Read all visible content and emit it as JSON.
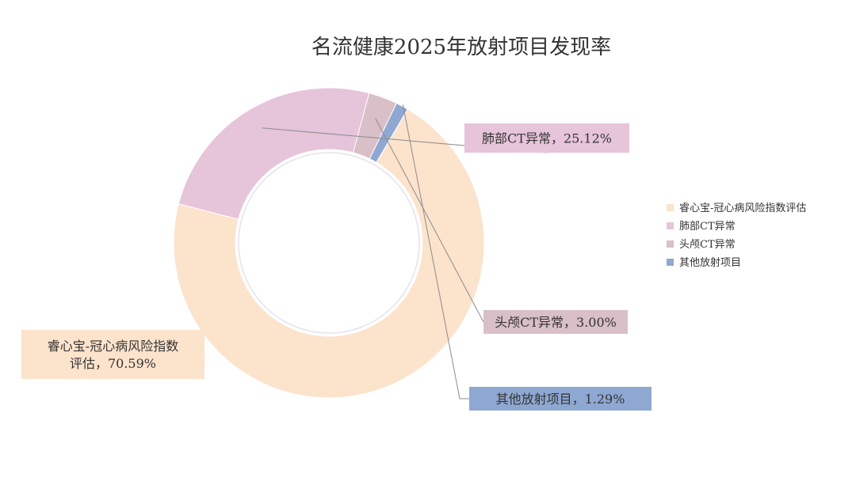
{
  "chart_data": {
    "type": "pie",
    "title": "名流健康2025年放射项目发现率",
    "donut": true,
    "categories": [
      "睿心宝-冠心病风险指数评估",
      "肺部CT异常",
      "头颅CT异常",
      "其他放射项目"
    ],
    "values": [
      70.59,
      25.12,
      3.0,
      1.29
    ],
    "colors": [
      "#fce3cc",
      "#e6c4da",
      "#d9bfc7",
      "#8fa8d2"
    ],
    "data_labels": [
      "睿心宝-冠心病风险指数评估，70.59%",
      "肺部CT异常，25.12%",
      "头颅CT异常，3.00%",
      "其他放射项目，1.29%"
    ],
    "data_label_lines": [
      [
        "睿心宝-冠心病风险指数",
        "评估，70.59%"
      ],
      [
        "肺部CT异常，25.12%"
      ],
      [
        "头颅CT异常，3.00%"
      ],
      [
        "其他放射项目，1.29%"
      ]
    ],
    "legend": {
      "position": "right",
      "entries": [
        "睿心宝-冠心病风险指数评估",
        "肺部CT异常",
        "头颅CT异常",
        "其他放射项目"
      ]
    }
  }
}
